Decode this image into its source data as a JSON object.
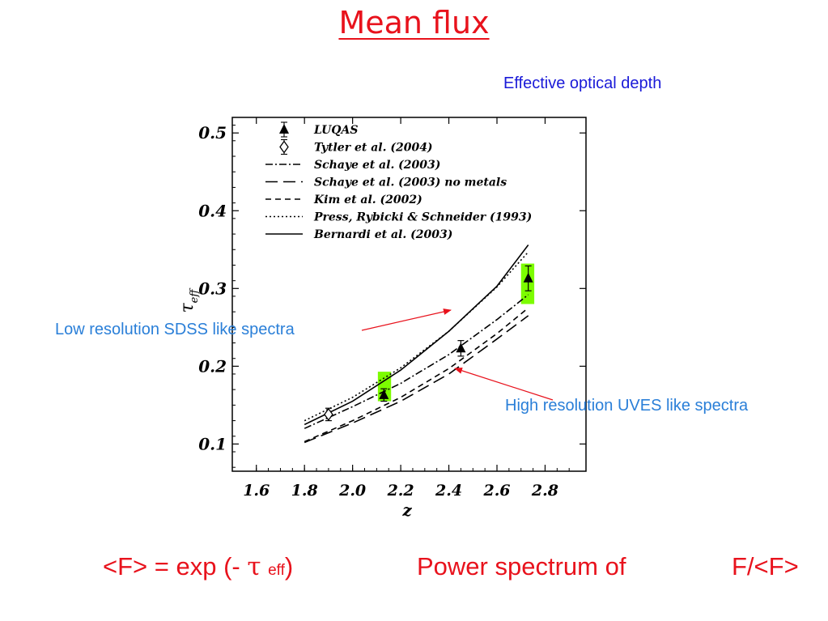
{
  "slide": {
    "title": "Mean flux",
    "subtitle": "Effective optical depth",
    "note_low": "Low resolution SDSS like spectra",
    "note_high": "High resolution UVES like spectra",
    "formula_left": "<F> = exp (- ",
    "formula_tau": "τ",
    "formula_sub": "eff",
    "formula_close": ")",
    "formula_right": "Power spectrum of",
    "formula_ratio": "F/<F>",
    "text_color": "#e8121c",
    "subtitle_color": "#1a1ad8",
    "note_color": "#2a7fd8",
    "highlight_color": "#7cfc00"
  },
  "chart_data": {
    "type": "line",
    "xlabel": "z",
    "ylabel": "τ",
    "ylabel_sub": "eff",
    "xlim": [
      1.5,
      2.97
    ],
    "ylim": [
      0.065,
      0.52
    ],
    "xticks": [
      1.6,
      1.8,
      2.0,
      2.2,
      2.4,
      2.6,
      2.8
    ],
    "xtick_labels": [
      "1.6",
      "1.8",
      "2.0",
      "2.2",
      "2.4",
      "2.6",
      "2.8"
    ],
    "yticks": [
      0.1,
      0.2,
      0.3,
      0.4,
      0.5
    ],
    "ytick_labels": [
      "0.1",
      "0.2",
      "0.3",
      "0.4",
      "0.5"
    ],
    "legend_position": "top-left",
    "series": [
      {
        "name": "LUQAS",
        "kind": "points",
        "marker": "filled-triangle",
        "x": [
          2.13,
          2.45,
          2.73
        ],
        "y": [
          0.163,
          0.223,
          0.313
        ],
        "err": [
          0.008,
          0.01,
          0.016
        ]
      },
      {
        "name": "Tytler et al. (2004)",
        "kind": "points",
        "marker": "open-diamond",
        "x": [
          1.9
        ],
        "y": [
          0.138
        ],
        "err": [
          0.008
        ]
      },
      {
        "name": "Schaye et al. (2003)",
        "kind": "line",
        "dash": "dash-dot",
        "x": [
          1.8,
          2.0,
          2.2,
          2.4,
          2.6,
          2.73
        ],
        "y": [
          0.12,
          0.148,
          0.178,
          0.215,
          0.26,
          0.292
        ]
      },
      {
        "name": "Schaye et al. (2003) no metals",
        "kind": "line",
        "dash": "long-dash",
        "x": [
          1.8,
          2.0,
          2.2,
          2.4,
          2.6,
          2.73
        ],
        "y": [
          0.102,
          0.127,
          0.155,
          0.19,
          0.235,
          0.265
        ]
      },
      {
        "name": "Kim et al. (2002)",
        "kind": "line",
        "dash": "dash",
        "x": [
          1.8,
          2.0,
          2.2,
          2.4,
          2.6,
          2.73
        ],
        "y": [
          0.103,
          0.13,
          0.16,
          0.197,
          0.242,
          0.275
        ]
      },
      {
        "name": "Press, Rybicki & Schneider (1993)",
        "kind": "line",
        "dash": "dot",
        "x": [
          1.8,
          2.0,
          2.2,
          2.4,
          2.6,
          2.73
        ],
        "y": [
          0.13,
          0.16,
          0.198,
          0.245,
          0.302,
          0.347
        ]
      },
      {
        "name": "Bernardi et al. (2003)",
        "kind": "line",
        "dash": "solid",
        "x": [
          1.8,
          2.0,
          2.2,
          2.4,
          2.6,
          2.73
        ],
        "y": [
          0.125,
          0.155,
          0.195,
          0.245,
          0.303,
          0.356
        ]
      }
    ],
    "highlights": [
      {
        "x0": 2.105,
        "x1": 2.16,
        "y0": 0.155,
        "y1": 0.193
      },
      {
        "x0": 2.7,
        "x1": 2.755,
        "y0": 0.28,
        "y1": 0.332
      }
    ]
  }
}
